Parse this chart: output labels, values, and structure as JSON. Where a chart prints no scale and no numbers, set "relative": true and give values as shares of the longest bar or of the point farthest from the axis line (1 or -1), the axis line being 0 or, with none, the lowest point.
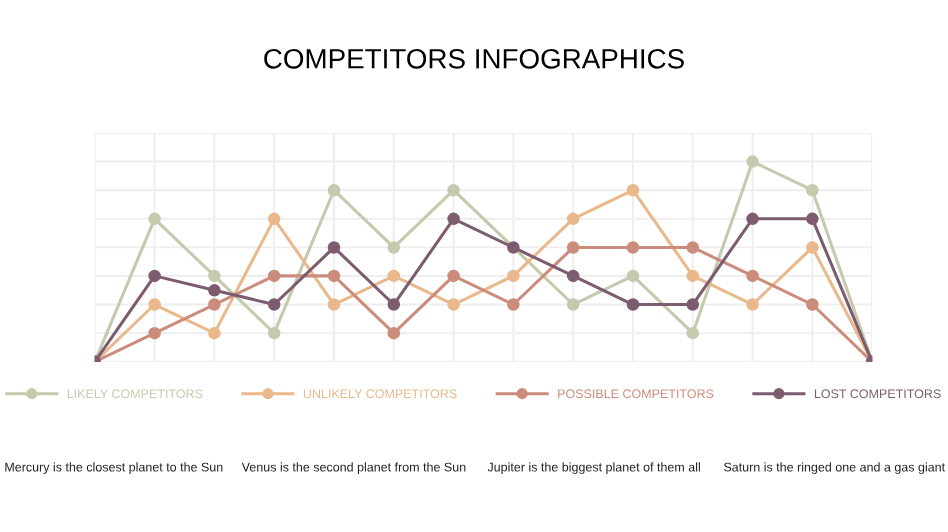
{
  "chart_data": {
    "type": "line",
    "title": "COMPETITORS INFOGRAPHICS",
    "relative": true,
    "categories": [
      null,
      null,
      null,
      null,
      null,
      null,
      null,
      null,
      null,
      null,
      null,
      null,
      null,
      null
    ],
    "series": [
      {
        "name": "LIKELY COMPETITORS",
        "color": "#c5c9ad",
        "values": [
          0,
          0.714,
          0.429,
          0.143,
          0.857,
          0.571,
          0.857,
          null,
          0.286,
          0.429,
          0.143,
          1,
          0.857,
          0
        ]
      },
      {
        "name": "UNLIKELY COMPETITORS",
        "color": "#e9b98c",
        "values": [
          0,
          0.286,
          0.143,
          0.714,
          0.286,
          0.429,
          0.286,
          0.429,
          0.714,
          0.857,
          0.429,
          0.286,
          0.571,
          0
        ]
      },
      {
        "name": "POSSIBLE COMPETITORS",
        "color": "#cc8c7c",
        "values": [
          0,
          0.143,
          0.286,
          0.429,
          0.429,
          0.143,
          0.429,
          0.286,
          0.571,
          0.571,
          0.571,
          0.429,
          0.286,
          0
        ]
      },
      {
        "name": "LOST COMPETITORS",
        "color": "#7e5c70",
        "values": [
          0,
          0.429,
          0.357,
          0.286,
          0.571,
          0.286,
          0.714,
          0.571,
          0.429,
          0.286,
          0.286,
          0.714,
          0.714,
          0
        ]
      }
    ],
    "marker": "circle",
    "grid": true,
    "legend": "bottom",
    "annotations": [
      "Mercury is the closest planet to the Sun",
      "Venus is the second planet from the Sun",
      "Jupiter is the biggest planet of them all",
      "Saturn is the ringed one and a gas giant"
    ]
  }
}
